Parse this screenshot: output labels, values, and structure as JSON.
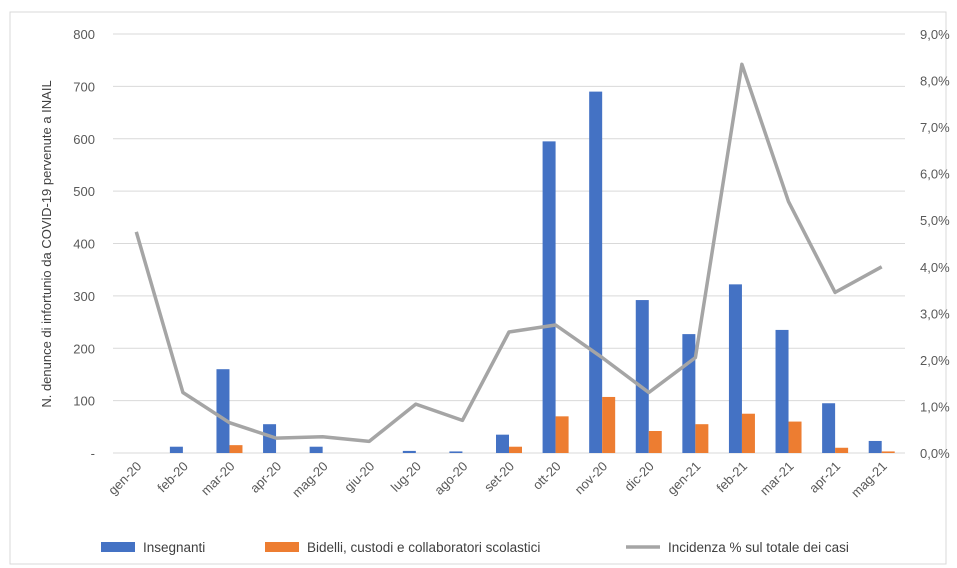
{
  "chart_data": {
    "type": "bar",
    "categories": [
      "gen-20",
      "feb-20",
      "mar-20",
      "apr-20",
      "mag-20",
      "giu-20",
      "lug-20",
      "ago-20",
      "set-20",
      "ott-20",
      "nov-20",
      "dic-20",
      "gen-21",
      "feb-21",
      "mar-21",
      "apr-21",
      "mag-21"
    ],
    "series": [
      {
        "name": "Insegnanti",
        "type": "bar",
        "axis": "left",
        "color": "#4472C4",
        "values": [
          0,
          12,
          160,
          55,
          12,
          0,
          4,
          3,
          35,
          595,
          690,
          292,
          227,
          322,
          235,
          95,
          23
        ]
      },
      {
        "name": "Bidelli, custodi e collaboratori scolastici",
        "type": "bar",
        "axis": "left",
        "color": "#ED7D31",
        "values": [
          0,
          0,
          15,
          0,
          0,
          0,
          0,
          0,
          12,
          70,
          107,
          42,
          55,
          75,
          60,
          10,
          3
        ]
      },
      {
        "name": "Incidenza % sul totale dei casi",
        "type": "line",
        "axis": "right",
        "color": "#A5A5A5",
        "values": [
          4.75,
          1.3,
          0.65,
          0.32,
          0.35,
          0.25,
          1.05,
          0.7,
          2.6,
          2.75,
          2.05,
          1.3,
          2.05,
          8.35,
          5.4,
          3.45,
          4.0
        ]
      }
    ],
    "ylabel": "N. denunce di infortunio da COVID-19 pervenute a INAIL",
    "ylim": [
      0,
      800
    ],
    "y_ticks": [
      "-",
      "100",
      "200",
      "300",
      "400",
      "500",
      "600",
      "700",
      "800"
    ],
    "y2lim": [
      0,
      9
    ],
    "y2_ticks": [
      "0,0%",
      "1,0%",
      "2,0%",
      "3,0%",
      "4,0%",
      "5,0%",
      "6,0%",
      "7,0%",
      "8,0%",
      "9,0%"
    ],
    "grid": true,
    "legend_position": "bottom"
  }
}
